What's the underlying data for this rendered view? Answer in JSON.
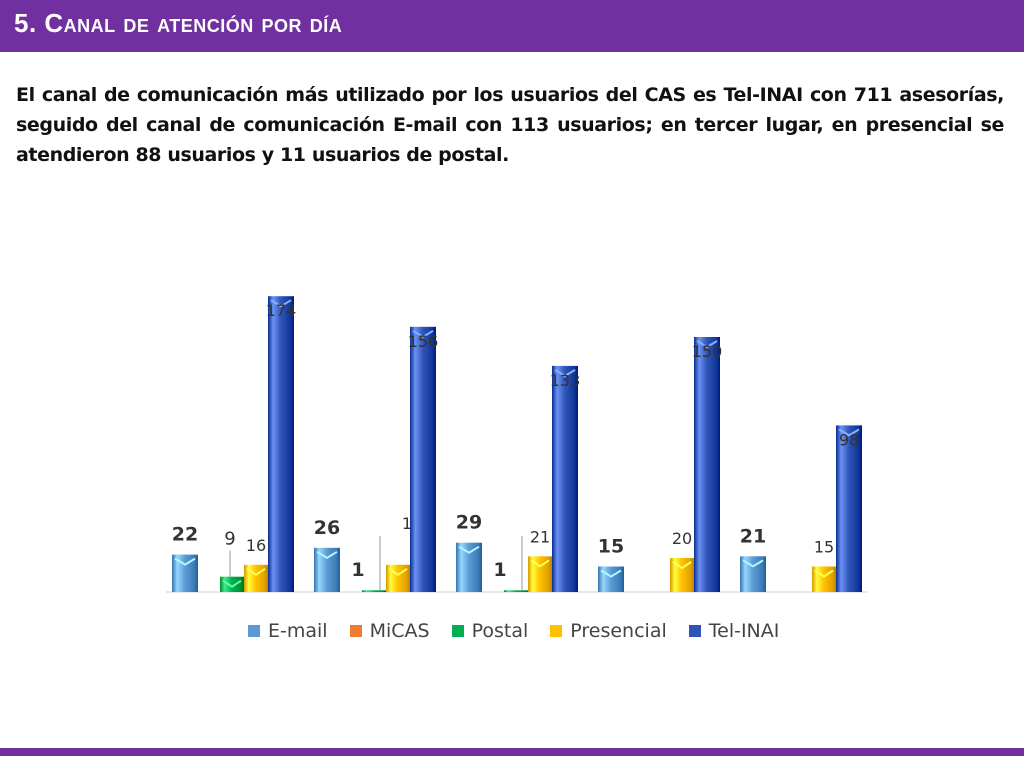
{
  "slide": {
    "title": "5. Canal de atención por día",
    "body": "El canal de comunicación más utilizado por los usuarios del CAS es Tel-INAI con 711 asesorías, seguido del canal de comunicación E-mail con 113 usuarios; en tercer lugar, en presencial se atendieron 88 usuarios y 11 usuarios de postal."
  },
  "colors": {
    "accent": "#7030a0",
    "email": "#5b9bd5",
    "micas": "#ed7d31",
    "postal": "#00b050",
    "presencial": "#ffc000",
    "telinai": "#2f55b8"
  },
  "chart_data": {
    "type": "bar",
    "title": "",
    "xlabel": "",
    "ylabel": "",
    "grid": false,
    "legend_position": "bottom",
    "groups": 5,
    "series": [
      {
        "name": "E-mail",
        "key": "email",
        "values": [
          22,
          26,
          29,
          15,
          21
        ]
      },
      {
        "name": "MiCAS",
        "key": "micas",
        "values": [
          0,
          0,
          0,
          0,
          0
        ]
      },
      {
        "name": "Postal",
        "key": "postal",
        "values": [
          9,
          1,
          1,
          0,
          0
        ]
      },
      {
        "name": "Presencial",
        "key": "presencial",
        "values": [
          16,
          16,
          21,
          20,
          15
        ]
      },
      {
        "name": "Tel-INAI",
        "key": "telinai",
        "values": [
          174,
          156,
          133,
          150,
          98
        ]
      }
    ]
  }
}
